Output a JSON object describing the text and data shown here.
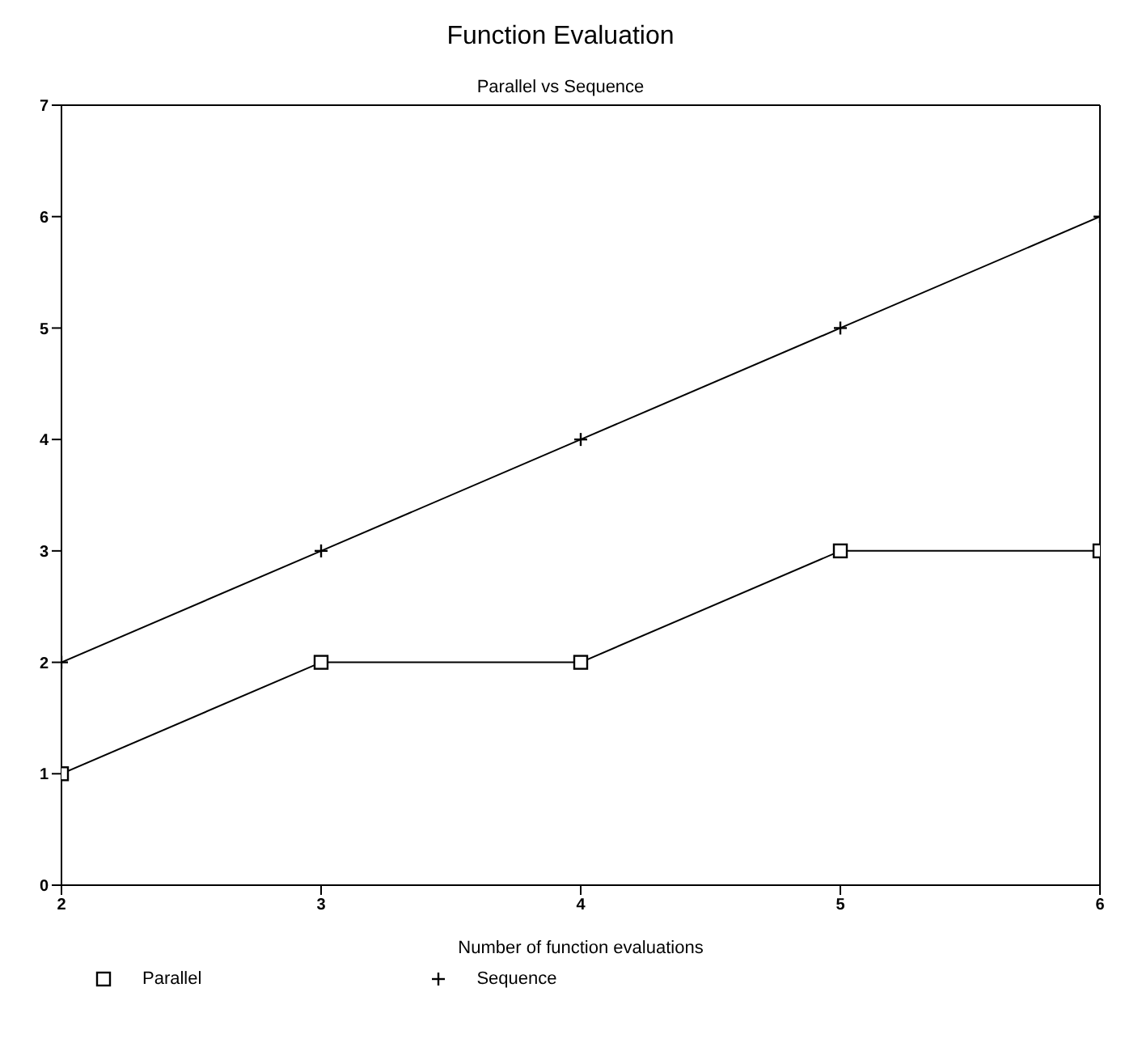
{
  "chart_data": {
    "type": "line",
    "title": "Function Evaluation",
    "subtitle": "Parallel vs Sequence",
    "xlabel": "Number of function evaluations",
    "x": [
      2,
      3,
      4,
      5,
      6
    ],
    "series": [
      {
        "name": "Parallel",
        "color": "#000000",
        "marker": "square",
        "values": [
          1,
          2,
          2,
          3,
          3
        ]
      },
      {
        "name": "Sequence",
        "color": "#000000",
        "marker": "cross",
        "values": [
          2,
          3,
          4,
          5,
          6
        ]
      }
    ],
    "xlim": [
      2,
      6
    ],
    "xticks": [
      2,
      3,
      4,
      5,
      6
    ],
    "ylim": [
      0,
      7
    ],
    "yticks": [
      0,
      1,
      2,
      3,
      4,
      5,
      6,
      7
    ],
    "grid": false,
    "legend": "bottom",
    "line_style": "solid"
  }
}
